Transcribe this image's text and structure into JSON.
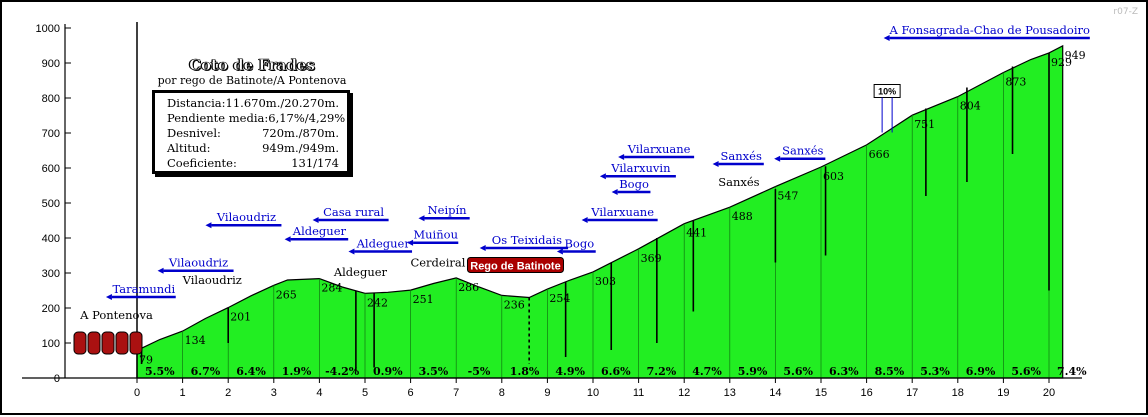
{
  "chart_data": {
    "type": "area",
    "title": "Coto de Frades",
    "subtitle": "por rego de Batinote/A Pontenova",
    "ylim": [
      0,
      1000
    ],
    "xlim": [
      0,
      20
    ],
    "y_ticks": [
      0,
      100,
      200,
      300,
      400,
      500,
      600,
      700,
      800,
      900,
      1000
    ],
    "x_ticks": [
      0,
      1,
      2,
      3,
      4,
      5,
      6,
      7,
      8,
      9,
      10,
      11,
      12,
      13,
      14,
      15,
      16,
      17,
      18,
      19,
      20
    ],
    "profile": [
      {
        "x": 0,
        "y": 79
      },
      {
        "x": 0.5,
        "y": 110
      },
      {
        "x": 1,
        "y": 134
      },
      {
        "x": 1.5,
        "y": 170
      },
      {
        "x": 2,
        "y": 201
      },
      {
        "x": 2.5,
        "y": 235
      },
      {
        "x": 3,
        "y": 265
      },
      {
        "x": 3.3,
        "y": 280
      },
      {
        "x": 4,
        "y": 284
      },
      {
        "x": 4.5,
        "y": 260
      },
      {
        "x": 5,
        "y": 242
      },
      {
        "x": 5.5,
        "y": 245
      },
      {
        "x": 6,
        "y": 251
      },
      {
        "x": 6.5,
        "y": 270
      },
      {
        "x": 7,
        "y": 286
      },
      {
        "x": 7.5,
        "y": 260
      },
      {
        "x": 8,
        "y": 236
      },
      {
        "x": 8.6,
        "y": 230
      },
      {
        "x": 9,
        "y": 254
      },
      {
        "x": 9.5,
        "y": 280
      },
      {
        "x": 10,
        "y": 303
      },
      {
        "x": 11,
        "y": 369
      },
      {
        "x": 12,
        "y": 441
      },
      {
        "x": 13,
        "y": 488
      },
      {
        "x": 14,
        "y": 547
      },
      {
        "x": 15,
        "y": 603
      },
      {
        "x": 16,
        "y": 666
      },
      {
        "x": 17,
        "y": 751
      },
      {
        "x": 18,
        "y": 804
      },
      {
        "x": 19,
        "y": 873
      },
      {
        "x": 19.6,
        "y": 910
      },
      {
        "x": 20,
        "y": 929
      },
      {
        "x": 20.3,
        "y": 949
      }
    ],
    "km_altitude_labels": [
      {
        "x": 0,
        "y": 79,
        "label": "79"
      },
      {
        "x": 1,
        "y": 134,
        "label": "134"
      },
      {
        "x": 2,
        "y": 201,
        "label": "201"
      },
      {
        "x": 3,
        "y": 265,
        "label": "265"
      },
      {
        "x": 4,
        "y": 284,
        "label": "284"
      },
      {
        "x": 5,
        "y": 242,
        "label": "242"
      },
      {
        "x": 6,
        "y": 251,
        "label": "251"
      },
      {
        "x": 7,
        "y": 286,
        "label": "286"
      },
      {
        "x": 8,
        "y": 236,
        "label": "236"
      },
      {
        "x": 9,
        "y": 254,
        "label": "254"
      },
      {
        "x": 10,
        "y": 303,
        "label": "303"
      },
      {
        "x": 11,
        "y": 369,
        "label": "369"
      },
      {
        "x": 12,
        "y": 441,
        "label": "441"
      },
      {
        "x": 13,
        "y": 488,
        "label": "488"
      },
      {
        "x": 14,
        "y": 547,
        "label": "547"
      },
      {
        "x": 15,
        "y": 603,
        "label": "603"
      },
      {
        "x": 16,
        "y": 666,
        "label": "666"
      },
      {
        "x": 17,
        "y": 751,
        "label": "751"
      },
      {
        "x": 18,
        "y": 804,
        "label": "804"
      },
      {
        "x": 19,
        "y": 873,
        "label": "873"
      },
      {
        "x": 20,
        "y": 929,
        "label": "929"
      },
      {
        "x": 20.3,
        "y": 949,
        "label": "949"
      }
    ],
    "gradients": [
      "5.5%",
      "6.7%",
      "6.4%",
      "1.9%",
      "-4.2%",
      "0.9%",
      "3.5%",
      "-5%",
      "1.8%",
      "4.9%",
      "6.6%",
      "7.2%",
      "4.7%",
      "5.9%",
      "5.6%",
      "6.3%",
      "8.5%",
      "5.3%",
      "6.9%",
      "5.6%",
      "7.4%"
    ],
    "side_roads": [
      {
        "x": 0.1,
        "from": 79,
        "to": 40
      },
      {
        "x": 2,
        "from": 201,
        "to": 100
      },
      {
        "x": 4.8,
        "from": 250,
        "to": 20
      },
      {
        "x": 5.2,
        "from": 243,
        "to": 30
      },
      {
        "x": 8.6,
        "from": 230,
        "to": 40,
        "dashed": true
      },
      {
        "x": 9.4,
        "from": 275,
        "to": 60
      },
      {
        "x": 10.4,
        "from": 330,
        "to": 80
      },
      {
        "x": 11.4,
        "from": 400,
        "to": 100
      },
      {
        "x": 12.2,
        "from": 450,
        "to": 190
      },
      {
        "x": 14.0,
        "from": 540,
        "to": 330
      },
      {
        "x": 15.1,
        "from": 605,
        "to": 350
      },
      {
        "x": 17.3,
        "from": 770,
        "to": 520
      },
      {
        "x": 18.2,
        "from": 830,
        "to": 560
      },
      {
        "x": 19.2,
        "from": 890,
        "to": 640
      },
      {
        "x": 20.0,
        "from": 930,
        "to": 250
      }
    ],
    "places": [
      {
        "name": "A Pontenova",
        "x": -0.45,
        "y": 168,
        "underline": false
      },
      {
        "name": "Taramundi",
        "x": 0.15,
        "y": 243,
        "underline": true
      },
      {
        "name": "Vilaoudriz",
        "x": 1.35,
        "y": 318,
        "underline": true
      },
      {
        "name": "Vilaoudriz",
        "x": 1.65,
        "y": 268,
        "underline": false
      },
      {
        "name": "Vilaoudriz",
        "x": 2.4,
        "y": 448,
        "underline": true
      },
      {
        "name": "Aldeguer",
        "x": 4.0,
        "y": 408,
        "underline": true
      },
      {
        "name": "Casa rural",
        "x": 4.75,
        "y": 463,
        "underline": true
      },
      {
        "name": "Aldeguer",
        "x": 5.4,
        "y": 373,
        "underline": true
      },
      {
        "name": "Aldeguer",
        "x": 4.9,
        "y": 292,
        "underline": false
      },
      {
        "name": "Neipín",
        "x": 6.8,
        "y": 468,
        "underline": true
      },
      {
        "name": "Muiñou",
        "x": 6.55,
        "y": 398,
        "underline": true
      },
      {
        "name": "Cerdeiral",
        "x": 6.6,
        "y": 318,
        "underline": false
      },
      {
        "name": "Os Teixidais",
        "x": 8.55,
        "y": 383,
        "underline": true
      },
      {
        "name": "Bogo",
        "x": 9.7,
        "y": 373,
        "underline": true
      },
      {
        "name": "Vilarxuane",
        "x": 10.65,
        "y": 463,
        "underline": true
      },
      {
        "name": "Bogo",
        "x": 10.9,
        "y": 543,
        "underline": true
      },
      {
        "name": "Vilarxuvin",
        "x": 11.05,
        "y": 588,
        "underline": true
      },
      {
        "name": "Vilarxuane",
        "x": 11.45,
        "y": 643,
        "underline": true
      },
      {
        "name": "Sanxés",
        "x": 13.25,
        "y": 623,
        "underline": true
      },
      {
        "name": "Sanxés",
        "x": 13.2,
        "y": 548,
        "underline": false
      },
      {
        "name": "Sanxés",
        "x": 14.6,
        "y": 638,
        "underline": true
      },
      {
        "name": "A Fonsagrada-Chao de Pousadoiro",
        "x": 18.7,
        "y": 983,
        "underline": true
      }
    ],
    "markers": [
      {
        "label": "Rego de Batinote",
        "x": 8.3,
        "y": 310
      },
      {
        "label": "10%",
        "x": 16.45,
        "y": 810
      }
    ]
  },
  "info_box": {
    "rows": [
      {
        "label": "Distancia:",
        "value": "11.670m./20.270m."
      },
      {
        "label": "Pendiente media:",
        "value": "6,17%/4,29%"
      },
      {
        "label": "Desnivel:",
        "value": "720m./870m."
      },
      {
        "label": "Altitud:",
        "value": "949m./949m."
      },
      {
        "label": "Coeficiente:",
        "value": "131/174"
      }
    ]
  },
  "ref_code": "r07-Z",
  "colors": {
    "fill": "#22ee22",
    "stroke": "#000000",
    "link": "#0000cc",
    "marker": "#aa0000"
  }
}
